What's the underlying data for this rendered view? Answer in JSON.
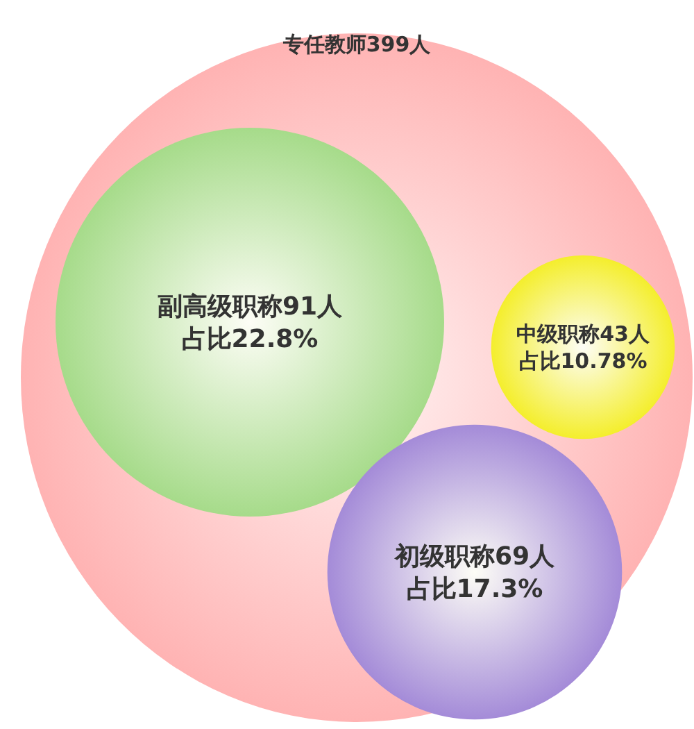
{
  "chart_data": {
    "type": "other",
    "title": "专任教师399人",
    "categories": [
      "副高级职称",
      "中级职称",
      "初级职称"
    ],
    "values": [
      91,
      43,
      69
    ],
    "value_labels": [
      "91人",
      "43人",
      "69人"
    ],
    "annotations": [
      "占比22.8%",
      "占比10.78%",
      "占比17.3%"
    ],
    "colors": [
      "#a6db8a",
      "#f4ee2c",
      "#a48bd8"
    ]
  }
}
